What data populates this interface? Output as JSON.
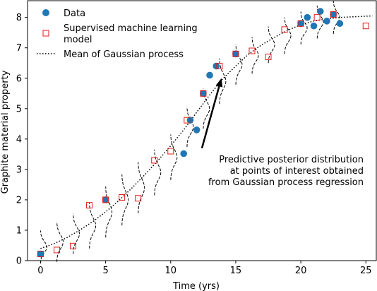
{
  "chart_data": {
    "type": "scatter",
    "xlabel": "Time (yrs)",
    "ylabel": "Graphite material property",
    "xlim": [
      -1,
      25.8
    ],
    "ylim": [
      0,
      8.55
    ],
    "xticks": [
      0,
      5,
      10,
      15,
      20,
      25
    ],
    "yticks": [
      0,
      1,
      2,
      3,
      4,
      5,
      6,
      7,
      8
    ],
    "grid": false,
    "legend_placement": "top-left",
    "legend": [
      {
        "key": "data",
        "label": "Data"
      },
      {
        "key": "ml",
        "label_lines": [
          "Supervised machine learning",
          "model"
        ]
      },
      {
        "key": "gp",
        "label": "Mean of Gaussian process"
      }
    ],
    "colors": {
      "data": "#1f77b4",
      "ml": "#e31a1c",
      "gp": "#000000"
    },
    "series": [
      {
        "name": "Data",
        "marker": "circle",
        "x": [
          0,
          5,
          11,
          11.5,
          12,
          12.5,
          13,
          13.5,
          15,
          20,
          20.5,
          21,
          21.5,
          22,
          22.5,
          23
        ],
        "y": [
          0.22,
          2.0,
          3.52,
          4.62,
          4.3,
          5.5,
          6.1,
          6.4,
          6.8,
          7.8,
          8.0,
          7.72,
          8.2,
          7.88,
          8.1,
          7.8
        ]
      },
      {
        "name": "Supervised machine learning model",
        "marker": "square",
        "x": [
          0,
          1.25,
          2.5,
          3.75,
          5,
          6.25,
          7.5,
          8.75,
          10,
          11.25,
          12.5,
          13.75,
          15,
          16.25,
          17.5,
          18.75,
          20,
          21.25,
          22.5,
          25
        ],
        "y": [
          0.22,
          0.35,
          0.48,
          1.82,
          2.0,
          2.08,
          2.05,
          3.3,
          3.6,
          4.62,
          5.5,
          6.4,
          6.8,
          6.9,
          6.7,
          7.6,
          7.8,
          8.0,
          8.1,
          7.72
        ]
      },
      {
        "name": "Mean of Gaussian process",
        "style": "dotted",
        "x": [
          0,
          1,
          2,
          3,
          4,
          5,
          6,
          7,
          8,
          9,
          10,
          11,
          12,
          13,
          14,
          15,
          16,
          17,
          18,
          19,
          20,
          21,
          22,
          23,
          24,
          25.5
        ],
        "y": [
          0.4,
          0.55,
          0.75,
          1.0,
          1.28,
          1.6,
          1.97,
          2.38,
          2.82,
          3.28,
          3.78,
          4.3,
          4.88,
          5.45,
          5.98,
          6.4,
          6.8,
          7.1,
          7.35,
          7.58,
          7.76,
          7.88,
          7.95,
          8.0,
          8.02,
          8.05
        ]
      }
    ],
    "posteriors": [
      {
        "x": 0,
        "mu": 0.45,
        "sd": 0.18
      },
      {
        "x": 1.25,
        "mu": 0.62,
        "sd": 0.22
      },
      {
        "x": 2.5,
        "mu": 0.88,
        "sd": 0.22
      },
      {
        "x": 3.75,
        "mu": 1.15,
        "sd": 0.25
      },
      {
        "x": 5,
        "mu": 1.6,
        "sd": 0.28
      },
      {
        "x": 6.25,
        "mu": 2.0,
        "sd": 0.28
      },
      {
        "x": 7.5,
        "mu": 2.4,
        "sd": 0.28
      },
      {
        "x": 8.75,
        "mu": 2.9,
        "sd": 0.25
      },
      {
        "x": 10,
        "mu": 3.4,
        "sd": 0.25
      },
      {
        "x": 11.25,
        "mu": 4.4,
        "sd": 0.22
      },
      {
        "x": 12.5,
        "mu": 5.0,
        "sd": 0.22
      },
      {
        "x": 13.75,
        "mu": 5.9,
        "sd": 0.25
      },
      {
        "x": 15,
        "mu": 6.45,
        "sd": 0.22
      },
      {
        "x": 16.25,
        "mu": 6.75,
        "sd": 0.2
      },
      {
        "x": 17.5,
        "mu": 7.1,
        "sd": 0.2
      },
      {
        "x": 18.75,
        "mu": 7.4,
        "sd": 0.2
      },
      {
        "x": 20,
        "mu": 7.65,
        "sd": 0.18
      },
      {
        "x": 21.25,
        "mu": 7.85,
        "sd": 0.18
      },
      {
        "x": 22.5,
        "mu": 8.0,
        "sd": 0.18
      }
    ],
    "annotation": {
      "lines": [
        "Predictive posterior distribution",
        "at points of interest obtained",
        "from Gaussian process regression"
      ],
      "arrow_from": [
        12.4,
        3.7
      ],
      "arrow_to": [
        13.9,
        6.0
      ]
    }
  }
}
